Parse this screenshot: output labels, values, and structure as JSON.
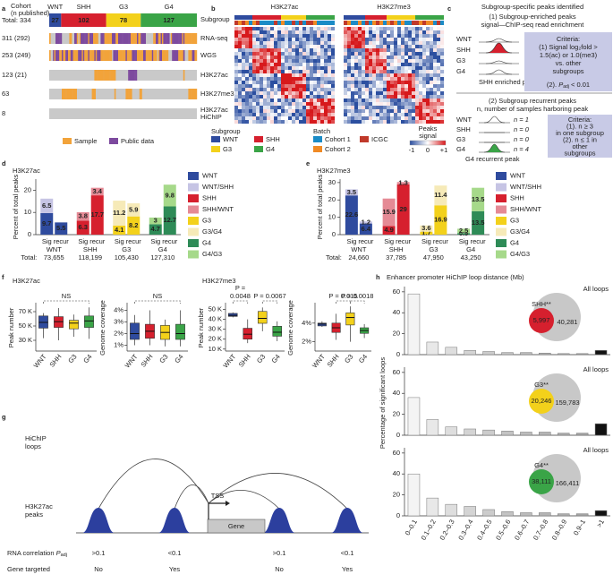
{
  "letters": [
    "a",
    "b",
    "c",
    "d",
    "e",
    "f",
    "g",
    "h"
  ],
  "a": {
    "cohort": [
      "Cohort",
      "(n published)"
    ],
    "total": "Total: 334",
    "subgroup_label": "Subgroup",
    "groups": [
      {
        "name": "WNT",
        "n": 27,
        "color": "#2f4b9e"
      },
      {
        "name": "SHH",
        "n": 102,
        "color": "#d6202e"
      },
      {
        "name": "G3",
        "n": 78,
        "color": "#f3d11b"
      },
      {
        "name": "G4",
        "n": 127,
        "color": "#3aa447"
      }
    ],
    "rows": [
      {
        "count": "311 (292)",
        "name": [
          "RNA-seq"
        ]
      },
      {
        "count": "253 (249)",
        "name": [
          "WGS"
        ]
      },
      {
        "count": "123 (21)",
        "name": [
          "H3K27ac"
        ]
      },
      {
        "count": "63",
        "name": [
          "H3K27me3"
        ]
      },
      {
        "count": "8",
        "name": [
          "H3K27ac",
          "HiChIP"
        ]
      }
    ],
    "legend": [
      {
        "name": "Sample",
        "color": "#f2a33a"
      },
      {
        "name": "Public data",
        "color": "#7d4a9e"
      }
    ]
  },
  "b": {
    "titles": [
      "H3K27ac",
      "H3K27me3"
    ],
    "subgroup_label": "Subgroup",
    "subgroups": [
      {
        "name": "WNT",
        "color": "#2f4b9e"
      },
      {
        "name": "SHH",
        "color": "#d6202e"
      },
      {
        "name": "G3",
        "color": "#f3d11b"
      },
      {
        "name": "G4",
        "color": "#3aa447"
      }
    ],
    "batch_label": "Batch",
    "batches": [
      {
        "name": "Cohort 1",
        "color": "#1b8bc6"
      },
      {
        "name": "Cohort 2",
        "color": "#f08a24"
      },
      {
        "name": "ICGC",
        "color": "#c0392b"
      }
    ],
    "signal_label": [
      "Peaks",
      "signal"
    ],
    "signal_ticks": [
      "-1",
      "0",
      "+1"
    ]
  },
  "c": {
    "title": "Subgroup-specific peaks identified",
    "p1": [
      "(1) Subgroup-enriched peaks",
      "signal—ChIP-seq read enrichment"
    ],
    "rows": [
      "WNT",
      "SHH",
      "G3",
      "G4"
    ],
    "p1_caption": "SHH enriched peak",
    "crit1": [
      "Criteria:",
      "(1) Signal log₂fold >",
      "1.5(ac) or 1.0(me3)",
      "vs. other",
      "subgroups"
    ],
    "crit1_p": [
      "(2). ",
      "P",
      "adj",
      " < 0.01"
    ],
    "p2": [
      "(2) Subgroup recurrent peaks",
      "n, number of samples harboring peak"
    ],
    "n_values": [
      "n = 1",
      "n = 0",
      "n = 0",
      "n = 4"
    ],
    "p2_caption": "G4 recurrent peak",
    "crit2": [
      "Criteria:",
      "(1). n ≥ 3",
      "in one subgroup",
      "(2). n ≤ 1 in",
      "other",
      "subgroups"
    ]
  },
  "d": {
    "title": "H3K27ac",
    "ylabel": "Percent of total peaks",
    "ylim": [
      0,
      25
    ],
    "yticks": [
      0,
      10,
      20
    ],
    "total_label": "Total:",
    "groups": [
      {
        "name": "WNT",
        "total": "73,655",
        "bars": [
          {
            "name": "Sig",
            "segments": [
              {
                "name": "WNT",
                "value": 9.7
              },
              {
                "name": "WNT/SHH",
                "value": 6.5
              }
            ]
          },
          {
            "name": "recur",
            "segments": [
              {
                "name": "WNT",
                "value": 5.5
              }
            ]
          }
        ]
      },
      {
        "name": "SHH",
        "total": "118,199",
        "bars": [
          {
            "name": "Sig",
            "segments": [
              {
                "name": "SHH",
                "value": 6.3
              },
              {
                "name": "SHH/WNT",
                "value": 3.8
              }
            ]
          },
          {
            "name": "recur",
            "segments": [
              {
                "name": "SHH",
                "value": 17.7
              },
              {
                "name": "SHH/WNT",
                "value": 3.4
              }
            ]
          }
        ]
      },
      {
        "name": "G3",
        "total": "105,430",
        "bars": [
          {
            "name": "Sig",
            "segments": [
              {
                "name": "G3",
                "value": 4.1
              },
              {
                "name": "G3/G4",
                "value": 11.2
              }
            ]
          },
          {
            "name": "recur",
            "segments": [
              {
                "name": "G3",
                "value": 8.2
              },
              {
                "name": "G3/G4",
                "value": 5.9
              }
            ]
          }
        ]
      },
      {
        "name": "G4",
        "total": "127,310",
        "bars": [
          {
            "name": "Sig",
            "segments": [
              {
                "name": "G4",
                "value": 4.7
              },
              {
                "name": "G4/G3",
                "value": 3.0
              }
            ]
          },
          {
            "name": "recur",
            "segments": [
              {
                "name": "G4",
                "value": 12.7
              },
              {
                "name": "G4/G3",
                "value": 9.8
              }
            ]
          }
        ]
      }
    ],
    "legend": [
      {
        "name": "WNT",
        "color": "#2f4b9e"
      },
      {
        "name": "WNT/SHH",
        "color": "#c6c4e4"
      },
      {
        "name": "SHH",
        "color": "#d6202e"
      },
      {
        "name": "SHH/WNT",
        "color": "#e58a95"
      },
      {
        "name": "G3",
        "color": "#f3d11b"
      },
      {
        "name": "G3/G4",
        "color": "#f6eab8"
      },
      {
        "name": "G4",
        "color": "#2e8b57"
      },
      {
        "name": "G4/G3",
        "color": "#a6d98a"
      }
    ]
  },
  "e": {
    "title": "H3K27me3",
    "ylabel": "Percent of total peaks",
    "ylim": [
      0,
      32
    ],
    "yticks": [
      0,
      10,
      20,
      30
    ],
    "total_label": "Total:",
    "groups": [
      {
        "name": "WNT",
        "total": "24,660",
        "bars": [
          {
            "name": "Sig",
            "segments": [
              {
                "name": "WNT",
                "value": 22.6
              },
              {
                "name": "WNT/SHH",
                "value": 3.5
              }
            ]
          },
          {
            "name": "recur",
            "segments": [
              {
                "name": "WNT",
                "value": 6.4
              },
              {
                "name": "WNT/SHH",
                "value": 1.2
              }
            ]
          }
        ]
      },
      {
        "name": "SHH",
        "total": "37,785",
        "bars": [
          {
            "name": "Sig",
            "segments": [
              {
                "name": "SHH",
                "value": 4.9
              },
              {
                "name": "SHH/WNT",
                "value": 15.9
              }
            ]
          },
          {
            "name": "recur",
            "segments": [
              {
                "name": "SHH",
                "value": 29.0
              },
              {
                "name": "SHH/WNT",
                "value": 1.3
              }
            ]
          }
        ]
      },
      {
        "name": "G3",
        "total": "47,950",
        "bars": [
          {
            "name": "Sig",
            "segments": [
              {
                "name": "G3",
                "value": 1.7
              },
              {
                "name": "G3/G4",
                "value": 3.6
              }
            ]
          },
          {
            "name": "recur",
            "segments": [
              {
                "name": "G3",
                "value": 16.9
              },
              {
                "name": "G3/G4",
                "value": 11.4
              }
            ]
          }
        ]
      },
      {
        "name": "G4",
        "total": "43,250",
        "bars": [
          {
            "name": "Sig",
            "segments": [
              {
                "name": "G4",
                "value": 0.9
              },
              {
                "name": "G4/G3",
                "value": 2.5
              }
            ]
          },
          {
            "name": "recur",
            "segments": [
              {
                "name": "G4",
                "value": 13.5
              },
              {
                "name": "G4/G3",
                "value": 13.5
              }
            ]
          }
        ]
      }
    ],
    "legend": [
      {
        "name": "WNT",
        "color": "#2f4b9e"
      },
      {
        "name": "WNT/SHH",
        "color": "#c6c4e4"
      },
      {
        "name": "SHH",
        "color": "#d6202e"
      },
      {
        "name": "SHH/WNT",
        "color": "#e58a95"
      },
      {
        "name": "G3",
        "color": "#f3d11b"
      },
      {
        "name": "G3/G4",
        "color": "#f6eab8"
      },
      {
        "name": "G4",
        "color": "#2e8b57"
      },
      {
        "name": "G4/G3",
        "color": "#a6d98a"
      }
    ]
  },
  "f": {
    "groups": [
      "WNT",
      "SHH",
      "G3",
      "G4"
    ],
    "colors": [
      "#2f4b9e",
      "#d6202e",
      "#f3d11b",
      "#3aa447"
    ],
    "plots": [
      {
        "title": "H3K27ac",
        "ylabel": "Peak number",
        "ylim": [
          15000,
          80000
        ],
        "yticks": [
          {
            "value": 30000,
            "label": "30 K"
          },
          {
            "value": 50000,
            "label": "50 K"
          },
          {
            "value": 70000,
            "label": "70 K"
          }
        ],
        "boxes": [
          {
            "lo": 33000,
            "q1": 47000,
            "median": 55000,
            "q3": 64000,
            "hi": 68000
          },
          {
            "lo": 30000,
            "q1": 48000,
            "median": 56000,
            "q3": 63000,
            "hi": 75000
          },
          {
            "lo": 35000,
            "q1": 46000,
            "median": 54000,
            "q3": 58000,
            "hi": 66000
          },
          {
            "lo": 32000,
            "q1": 48000,
            "median": 57000,
            "q3": 64000,
            "hi": 76000
          }
        ],
        "annotations": [
          {
            "lines": [
              "NS"
            ]
          }
        ]
      },
      {
        "ylabel": "Genome coverage",
        "ylim": [
          0.5,
          4.5
        ],
        "yticks": [
          {
            "value": 1,
            "label": "1%"
          },
          {
            "value": 2,
            "label": "2%"
          },
          {
            "value": 3,
            "label": "3%"
          },
          {
            "value": 4,
            "label": "4%"
          }
        ],
        "boxes": [
          {
            "lo": 1.0,
            "q1": 1.5,
            "median": 2.0,
            "q3": 2.9,
            "hi": 3.6
          },
          {
            "lo": 1.0,
            "q1": 1.6,
            "median": 2.2,
            "q3": 2.8,
            "hi": 4.0
          },
          {
            "lo": 0.9,
            "q1": 1.5,
            "median": 2.1,
            "q3": 2.7,
            "hi": 3.2
          },
          {
            "lo": 0.9,
            "q1": 1.5,
            "median": 2.0,
            "q3": 2.8,
            "hi": 4.0
          }
        ],
        "annotations": [
          {
            "lines": [
              "NS"
            ]
          }
        ]
      },
      {
        "title": "H3K27me3",
        "ylabel": "Peak number",
        "ylim": [
          8000,
          55000
        ],
        "yticks": [
          {
            "value": 10000,
            "label": "10 K"
          },
          {
            "value": 20000,
            "label": "20 K"
          },
          {
            "value": 30000,
            "label": "30 K"
          },
          {
            "value": 40000,
            "label": "40 K"
          },
          {
            "value": 50000,
            "label": "50 K"
          }
        ],
        "boxes": [
          {
            "lo": 42000,
            "q1": 43000,
            "median": 44000,
            "q3": 46000,
            "hi": 47000
          },
          {
            "lo": 16000,
            "q1": 20000,
            "median": 25000,
            "q3": 31000,
            "hi": 40000
          },
          {
            "lo": 28000,
            "q1": 36000,
            "median": 41000,
            "q3": 48000,
            "hi": 52000
          },
          {
            "lo": 18000,
            "q1": 23000,
            "median": 27000,
            "q3": 33000,
            "hi": 38000
          }
        ],
        "annotations": [
          {
            "lines": [
              "P =",
              "0.0048"
            ]
          },
          {
            "lines": [
              "P = 0.0067"
            ]
          }
        ]
      },
      {
        "ylabel": "Genome coverage",
        "ylim": [
          1,
          6
        ],
        "yticks": [
          {
            "value": 2,
            "label": "2%"
          },
          {
            "value": 4,
            "label": "4%"
          }
        ],
        "boxes": [
          {
            "lo": 3.6,
            "q1": 3.7,
            "median": 3.9,
            "q3": 4.0,
            "hi": 4.2
          },
          {
            "lo": 2.2,
            "q1": 3.0,
            "median": 3.5,
            "q3": 4.0,
            "hi": 5.0
          },
          {
            "lo": 2.0,
            "q1": 3.8,
            "median": 4.6,
            "q3": 5.1,
            "hi": 5.8
          },
          {
            "lo": 2.4,
            "q1": 2.9,
            "median": 3.2,
            "q3": 3.5,
            "hi": 3.9
          }
        ],
        "annotations": [
          {
            "lines": [
              "P = 0.015"
            ]
          },
          {
            "lines": [
              "P = 0.0018"
            ]
          }
        ]
      }
    ]
  },
  "g": {
    "loops": [
      "HiChIP",
      "loops"
    ],
    "peaks": [
      "H3K27ac",
      "peaks"
    ],
    "tss": "TSS",
    "gene": "Gene",
    "rna": [
      "RNA correlation ",
      "P",
      "adj"
    ],
    "rna_values": [
      ">0.1",
      "<0.1",
      ">0.1",
      "<0.1"
    ],
    "targeted": "Gene targeted",
    "targets": [
      "No",
      "Yes",
      "No",
      "Yes"
    ]
  },
  "h": {
    "title": "Enhancer promoter HiChIP loop distance (Mb)",
    "ylabel": "Percentage of significant loops",
    "all_label": "All loops",
    "categories": [
      "0–0.1",
      "0.1–0.2",
      "0.2–0.3",
      "0.3–0.4",
      "0.4–0.5",
      "0.5–0.6",
      "0.6–0.7",
      "0.7–0.8",
      "0.8–0.9",
      "0.9–1",
      ">1"
    ],
    "colors": [
      "#f4f4f4",
      "#e8e8e8",
      "#dedede",
      "#d4d4d4",
      "#cccccc",
      "#c4c4c4",
      "#bcbcbc",
      "#b4b4b4",
      "#acacac",
      "#a4a4a4",
      "#111111"
    ],
    "ylim": [
      0,
      65
    ],
    "yticks": [
      0,
      20,
      40,
      60
    ],
    "plots": [
      {
        "values": [
          58,
          12,
          7,
          4,
          3,
          2,
          2,
          1.5,
          1,
          1,
          4
        ],
        "venn": {
          "label": "SHH**",
          "color": "#d6202e",
          "inner": "5,997",
          "outer": "40,281"
        }
      },
      {
        "values": [
          36,
          15,
          8,
          6,
          5,
          4,
          3,
          3,
          2,
          2,
          11
        ],
        "venn": {
          "label": "G3**",
          "color": "#f3d11b",
          "inner": "20,246",
          "outer": "159,783"
        }
      },
      {
        "values": [
          40,
          17,
          11,
          9,
          6,
          4,
          3,
          3,
          2,
          2,
          5
        ],
        "venn": {
          "label": "G4**",
          "color": "#3aa447",
          "inner": "38,111",
          "outer": "166,411"
        }
      }
    ]
  }
}
